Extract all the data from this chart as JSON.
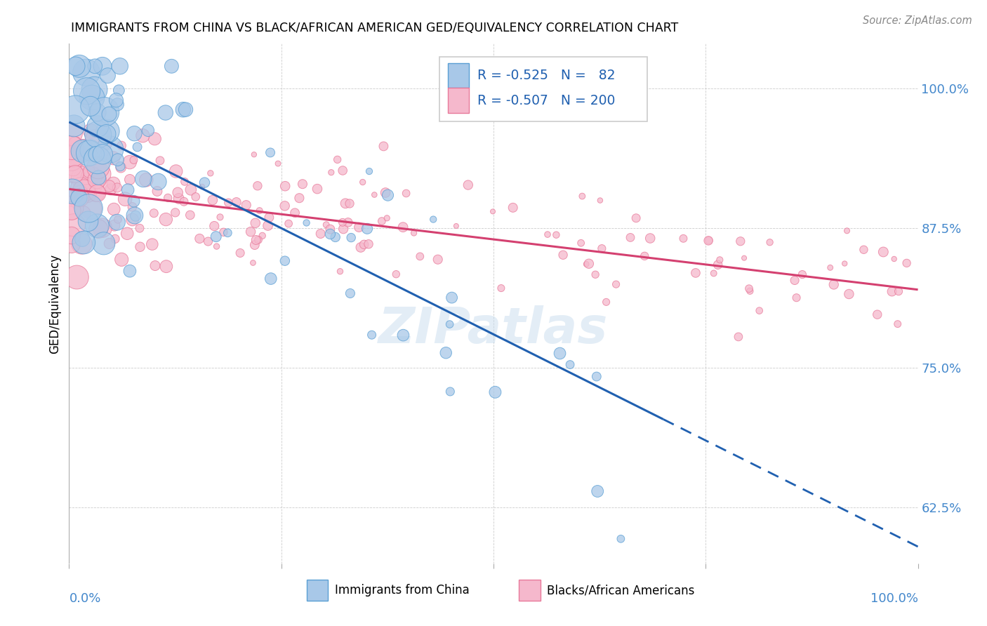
{
  "title": "IMMIGRANTS FROM CHINA VS BLACK/AFRICAN AMERICAN GED/EQUIVALENCY CORRELATION CHART",
  "source": "Source: ZipAtlas.com",
  "ylabel": "GED/Equivalency",
  "ytick_labels": [
    "62.5%",
    "75.0%",
    "87.5%",
    "100.0%"
  ],
  "ytick_values": [
    0.625,
    0.75,
    0.875,
    1.0
  ],
  "xmin": 0.0,
  "xmax": 1.0,
  "ymin": 0.575,
  "ymax": 1.04,
  "color_blue_fill": "#a8c8e8",
  "color_pink_fill": "#f5b8cc",
  "color_blue_edge": "#5a9fd4",
  "color_pink_edge": "#e87a9a",
  "color_blue_line": "#2060b0",
  "color_pink_line": "#d44070",
  "color_ytick": "#4488cc",
  "color_xtick": "#4488cc",
  "watermark_text": "ZIPatlas",
  "legend_R1": "-0.525",
  "legend_N1": "82",
  "legend_R2": "-0.507",
  "legend_N2": "200",
  "blue_line_y0": 0.97,
  "blue_line_y1": 0.59,
  "blue_solid_xend": 0.7,
  "pink_line_y0": 0.91,
  "pink_line_y1": 0.82
}
